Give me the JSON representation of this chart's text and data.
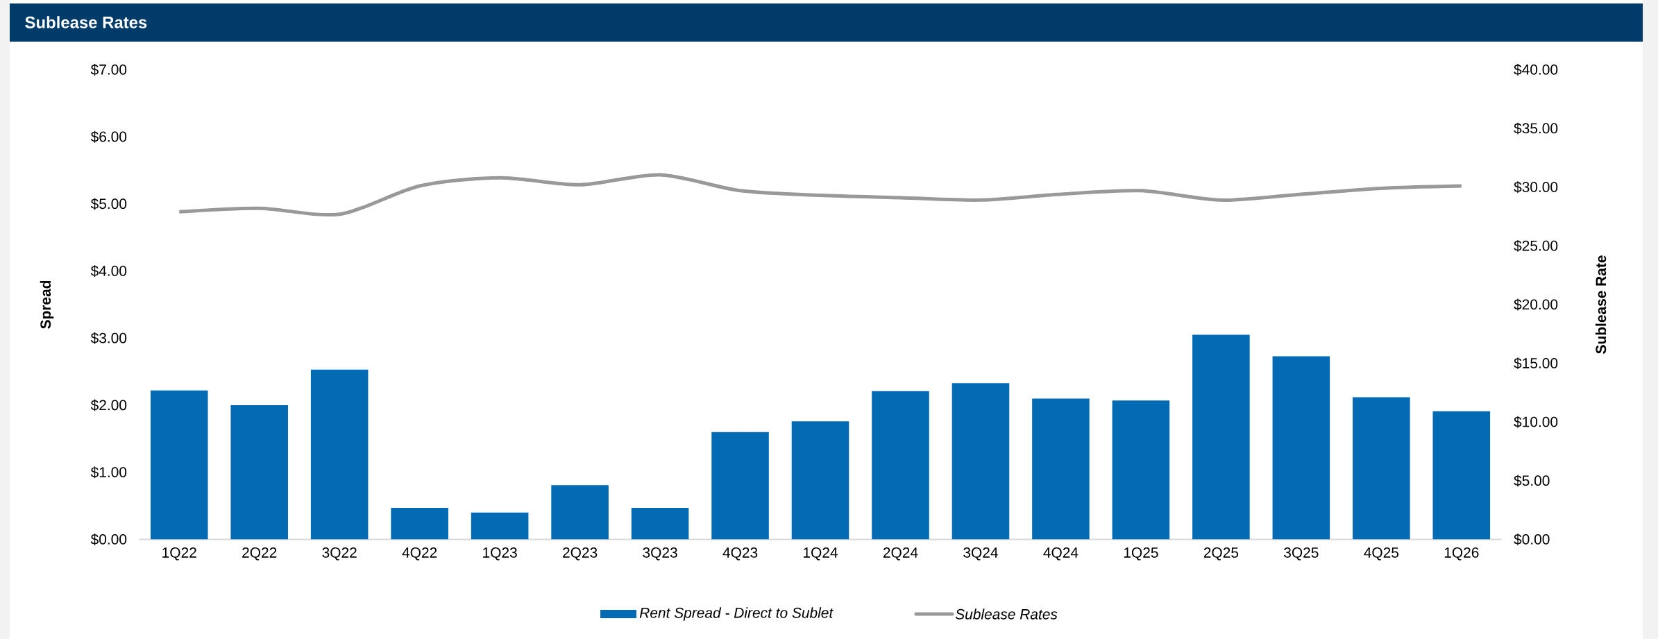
{
  "chart_data": {
    "type": "bar",
    "title": "Sublease Rates",
    "ylabel": "Spread",
    "y2label": "Sublease Rate",
    "categories": [
      "1Q22",
      "2Q22",
      "3Q22",
      "4Q22",
      "1Q23",
      "2Q23",
      "3Q23",
      "4Q23",
      "1Q24",
      "2Q24",
      "3Q24",
      "4Q24",
      "1Q25",
      "2Q25",
      "3Q25",
      "4Q25",
      "1Q26"
    ],
    "series": [
      {
        "name": "Rent Spread - Direct to Sublet",
        "color": "#036ab4",
        "values": [
          2.22,
          2.0,
          2.53,
          0.47,
          0.4,
          0.81,
          0.47,
          1.6,
          1.76,
          2.21,
          2.33,
          2.1,
          2.07,
          3.05,
          2.73,
          2.12,
          1.91
        ]
      },
      {
        "name": "Sublease Rates",
        "type": "line",
        "axis": "y2",
        "color": "#999999",
        "values": [
          27.9,
          28.2,
          27.7,
          30.1,
          30.8,
          30.2,
          31.05,
          29.7,
          29.3,
          29.1,
          28.9,
          29.4,
          29.7,
          28.9,
          29.4,
          29.9,
          30.1
        ]
      }
    ],
    "ylim": [
      0,
      7
    ],
    "yticks": [
      {
        "value": 0,
        "label": "$0.00"
      },
      {
        "value": 1,
        "label": "$1.00"
      },
      {
        "value": 2,
        "label": "$2.00"
      },
      {
        "value": 3,
        "label": "$3.00"
      },
      {
        "value": 4,
        "label": "$4.00"
      },
      {
        "value": 5,
        "label": "$5.00"
      },
      {
        "value": 6,
        "label": "$6.00"
      },
      {
        "value": 7,
        "label": "$7.00"
      }
    ],
    "y2lim": [
      0,
      40
    ],
    "y2ticks": [
      {
        "value": 0,
        "label": "$0.00"
      },
      {
        "value": 5,
        "label": "$5.00"
      },
      {
        "value": 10,
        "label": "$10.00"
      },
      {
        "value": 15,
        "label": "$15.00"
      },
      {
        "value": 20,
        "label": "$20.00"
      },
      {
        "value": 25,
        "label": "$25.00"
      },
      {
        "value": 30,
        "label": "$30.00"
      },
      {
        "value": 35,
        "label": "$35.00"
      },
      {
        "value": 40,
        "label": "$40.00"
      }
    ],
    "legend": "bottom",
    "grid": false,
    "marker": "none"
  }
}
